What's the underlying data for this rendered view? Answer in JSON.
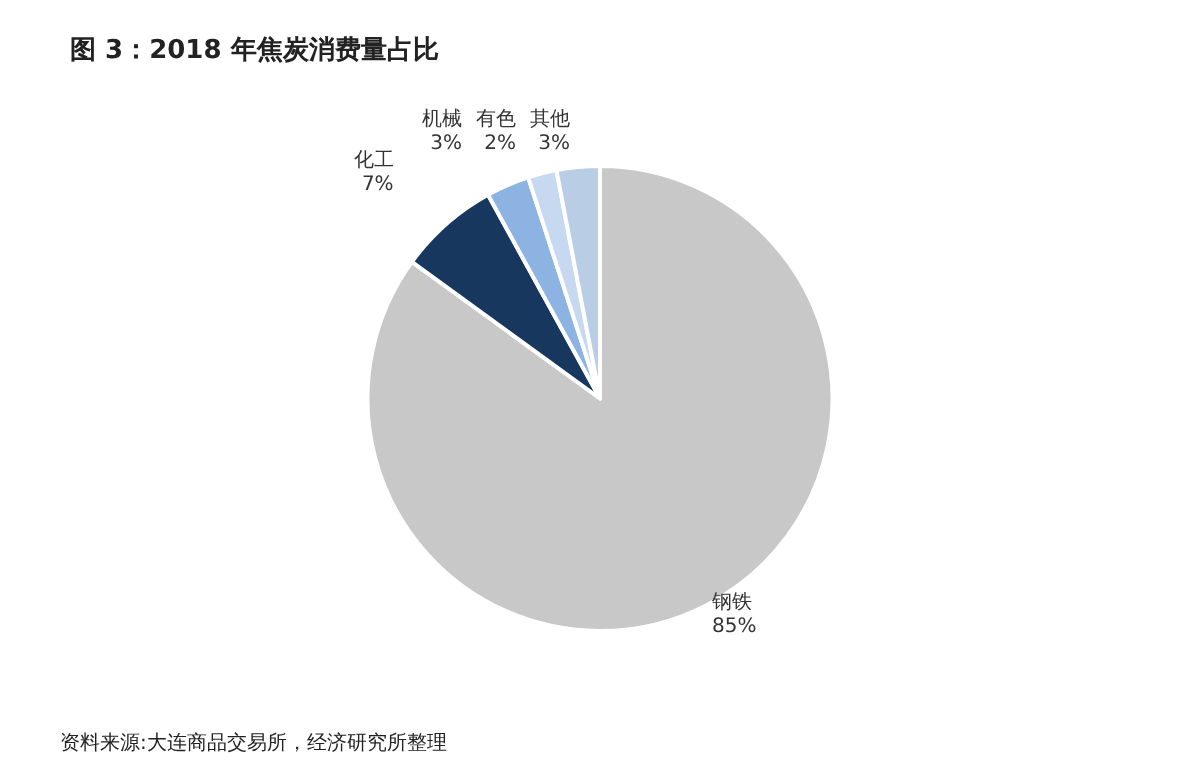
{
  "chart_data": {
    "type": "pie",
    "title": "图 3：2018 年焦炭消费量占比",
    "categories": [
      "钢铁",
      "化工",
      "机械",
      "有色",
      "其他"
    ],
    "values": [
      85,
      7,
      3,
      2,
      3
    ],
    "value_labels": [
      "85%",
      "7%",
      "3%",
      "2%",
      "3%"
    ],
    "colors": [
      "#c8c8c8",
      "#17375e",
      "#8db3e2",
      "#c6d9f1",
      "#b9cde5"
    ],
    "legend": false,
    "annotations": [
      "资料来源:大连商品交易所，经济研究所整理"
    ]
  }
}
